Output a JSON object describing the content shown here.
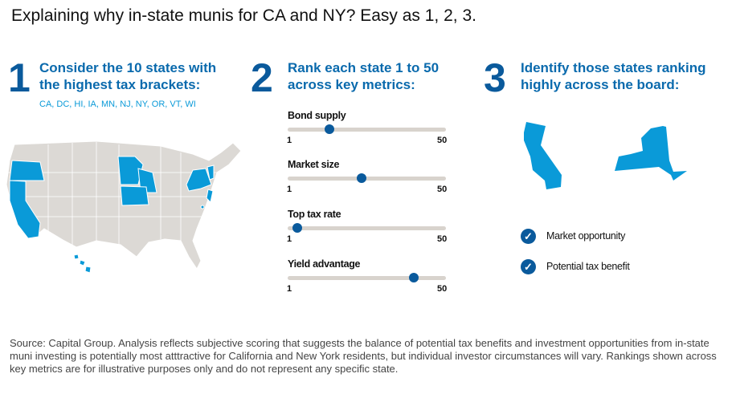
{
  "title": "Explaining why in-state munis for CA and NY? Easy as 1, 2, 3.",
  "steps": [
    {
      "number": "1",
      "heading_line1": "Consider the 10 states with",
      "heading_line2": "the highest tax brackets:",
      "states": "CA, DC, HI, IA, MN, NJ, NY, OR, VT, WI"
    },
    {
      "number": "2",
      "heading_line1": "Rank each state 1 to 50",
      "heading_line2": "across key metrics:"
    },
    {
      "number": "3",
      "heading_line1": "Identify those states ranking",
      "heading_line2": "highly across the board:"
    }
  ],
  "sliders": [
    {
      "label": "Bond supply",
      "min": "1",
      "max": "50",
      "value": 14
    },
    {
      "label": "Market size",
      "min": "1",
      "max": "50",
      "value": 24
    },
    {
      "label": "Top tax rate",
      "min": "1",
      "max": "50",
      "value": 4
    },
    {
      "label": "Yield advantage",
      "min": "1",
      "max": "50",
      "value": 40
    }
  ],
  "checks": [
    "Market opportunity",
    "Potential tax benefit"
  ],
  "colors": {
    "highlight": "#0a9ad8",
    "dark_blue": "#0a5a9c",
    "map_gray": "#dcd9d5"
  },
  "source": "Source: Capital Group. Analysis reflects subjective scoring that suggests the balance of potential tax benefits and investment opportunities from in-state muni investing is potentially most atttractive for California and New York residents, but individual investor circumstances will vary. Rankings shown across key metrics are for illustrative purposes only and do not represent any specific state."
}
